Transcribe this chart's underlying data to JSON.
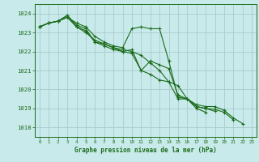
{
  "background_color": "#c8eaea",
  "grid_color": "#aacccc",
  "line_color": "#1a6b1a",
  "marker_color": "#1a6b1a",
  "title": "Graphe pression niveau de la mer (hPa)",
  "xlim": [
    -0.5,
    23.5
  ],
  "ylim": [
    1017.5,
    1024.5
  ],
  "yticks": [
    1018,
    1019,
    1020,
    1021,
    1022,
    1023,
    1024
  ],
  "xticks": [
    0,
    1,
    2,
    3,
    4,
    5,
    6,
    7,
    8,
    9,
    10,
    11,
    12,
    13,
    14,
    15,
    16,
    17,
    18,
    19,
    20,
    21,
    22,
    23
  ],
  "lines": [
    {
      "x": [
        0,
        1,
        2,
        3,
        4,
        5,
        6,
        7,
        8,
        9,
        10,
        11,
        12,
        13,
        14,
        15,
        16,
        17,
        18,
        19,
        20,
        21,
        22
      ],
      "y": [
        1023.3,
        1023.5,
        1023.6,
        1023.8,
        1023.5,
        1023.3,
        1022.8,
        1022.5,
        1022.3,
        1022.2,
        1023.2,
        1023.3,
        1023.2,
        1023.2,
        1021.5,
        1019.6,
        1019.5,
        1019.2,
        1019.1,
        1019.1,
        1018.9,
        1018.5,
        1018.2
      ]
    },
    {
      "x": [
        0,
        1,
        2,
        3,
        4,
        5,
        6,
        7,
        8,
        9,
        10,
        11,
        12,
        13,
        14,
        15,
        16,
        17,
        18,
        19,
        20,
        21
      ],
      "y": [
        1023.3,
        1023.5,
        1023.6,
        1023.9,
        1023.4,
        1023.2,
        1022.5,
        1022.4,
        1022.2,
        1022.0,
        1022.1,
        1021.0,
        1021.5,
        1021.3,
        1021.1,
        1019.7,
        1019.5,
        1019.1,
        1019.0,
        1018.95,
        1018.8,
        1018.4
      ]
    },
    {
      "x": [
        0,
        1,
        2,
        3,
        4,
        5,
        6,
        7,
        8,
        9,
        10,
        11,
        12,
        13,
        14,
        15,
        16,
        17,
        18,
        19
      ],
      "y": [
        1023.3,
        1023.5,
        1023.6,
        1023.8,
        1023.3,
        1023.1,
        1022.5,
        1022.3,
        1022.1,
        1022.0,
        1021.9,
        1021.0,
        1020.8,
        1020.5,
        1020.4,
        1020.2,
        1019.5,
        1019.1,
        1019.0,
        1018.85
      ]
    },
    {
      "x": [
        0,
        1,
        2,
        3,
        4,
        5,
        6,
        7,
        8,
        9,
        10,
        11,
        12,
        13,
        14,
        15,
        16,
        17,
        18
      ],
      "y": [
        1023.3,
        1023.5,
        1023.6,
        1023.9,
        1023.3,
        1023.0,
        1022.6,
        1022.4,
        1022.2,
        1022.1,
        1022.0,
        1021.8,
        1021.4,
        1021.0,
        1020.4,
        1019.5,
        1019.5,
        1019.0,
        1018.8
      ]
    }
  ],
  "xlabel_fontsize": 5.5,
  "ylabel_fontsize": 5.5,
  "xtick_fontsize": 4.2,
  "ytick_fontsize": 5.2
}
